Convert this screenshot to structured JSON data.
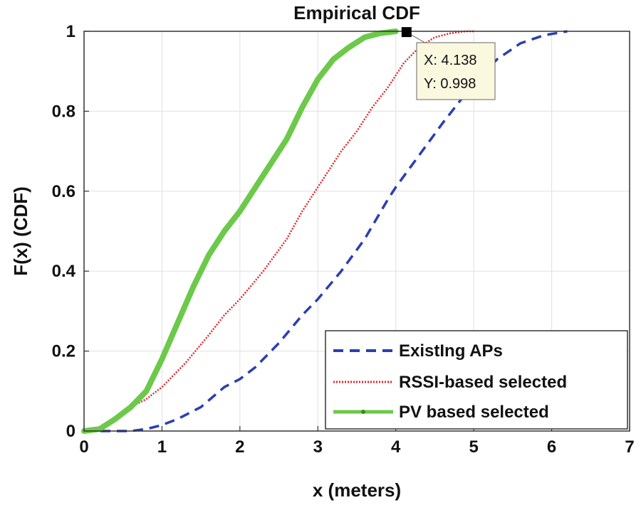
{
  "chart_data": {
    "type": "line",
    "title": "Empirical CDF",
    "xlabel": "x (meters)",
    "ylabel": "F(x)  (CDF)",
    "xlim": [
      0,
      7
    ],
    "ylim": [
      0,
      1
    ],
    "grid": true,
    "xticks": [
      "0",
      "1",
      "2",
      "3",
      "4",
      "5",
      "6",
      "7"
    ],
    "yticks": [
      "0",
      "0.2",
      "0.4",
      "0.6",
      "0.8",
      "1"
    ],
    "legend_position": "bottom-right",
    "series": [
      {
        "name": "ExistIng APs",
        "style": "dashed",
        "color": "#2a3fb0",
        "x": [
          0,
          0.6,
          0.8,
          1.0,
          1.2,
          1.5,
          1.8,
          2.0,
          2.2,
          2.5,
          2.8,
          3.0,
          3.3,
          3.6,
          3.9,
          4.0,
          4.3,
          4.6,
          5.0,
          5.3,
          5.6,
          5.9,
          6.2
        ],
        "y": [
          0,
          0,
          0.005,
          0.015,
          0.03,
          0.06,
          0.11,
          0.13,
          0.16,
          0.22,
          0.29,
          0.33,
          0.4,
          0.48,
          0.58,
          0.61,
          0.69,
          0.77,
          0.87,
          0.93,
          0.97,
          0.99,
          1.0
        ]
      },
      {
        "name": "RSSI-based selected",
        "style": "dotted",
        "color": "#e0252a",
        "x": [
          0,
          0.2,
          0.4,
          0.6,
          0.8,
          1.0,
          1.3,
          1.6,
          1.8,
          2.0,
          2.3,
          2.6,
          2.8,
          3.0,
          3.3,
          3.5,
          3.7,
          3.9,
          4.1,
          4.3,
          4.5,
          4.7,
          4.9,
          5.0
        ],
        "y": [
          0,
          0.005,
          0.03,
          0.06,
          0.08,
          0.11,
          0.17,
          0.24,
          0.29,
          0.33,
          0.4,
          0.48,
          0.55,
          0.61,
          0.7,
          0.75,
          0.81,
          0.86,
          0.92,
          0.96,
          0.985,
          0.995,
          1.0,
          1.0
        ]
      },
      {
        "name": "PV based selected",
        "style": "solid",
        "color": "#6cc94a",
        "x": [
          0,
          0.2,
          0.4,
          0.6,
          0.8,
          1.0,
          1.2,
          1.4,
          1.6,
          1.8,
          2.0,
          2.2,
          2.4,
          2.6,
          2.8,
          3.0,
          3.2,
          3.4,
          3.6,
          3.8,
          4.0
        ],
        "y": [
          0,
          0.005,
          0.03,
          0.06,
          0.1,
          0.18,
          0.27,
          0.36,
          0.44,
          0.5,
          0.55,
          0.61,
          0.67,
          0.73,
          0.81,
          0.88,
          0.93,
          0.96,
          0.985,
          0.995,
          1.0
        ]
      }
    ],
    "datatip": {
      "x_label": "X: 4.138",
      "y_label": "Y: 0.998",
      "x": 4.138,
      "y": 0.998
    }
  }
}
